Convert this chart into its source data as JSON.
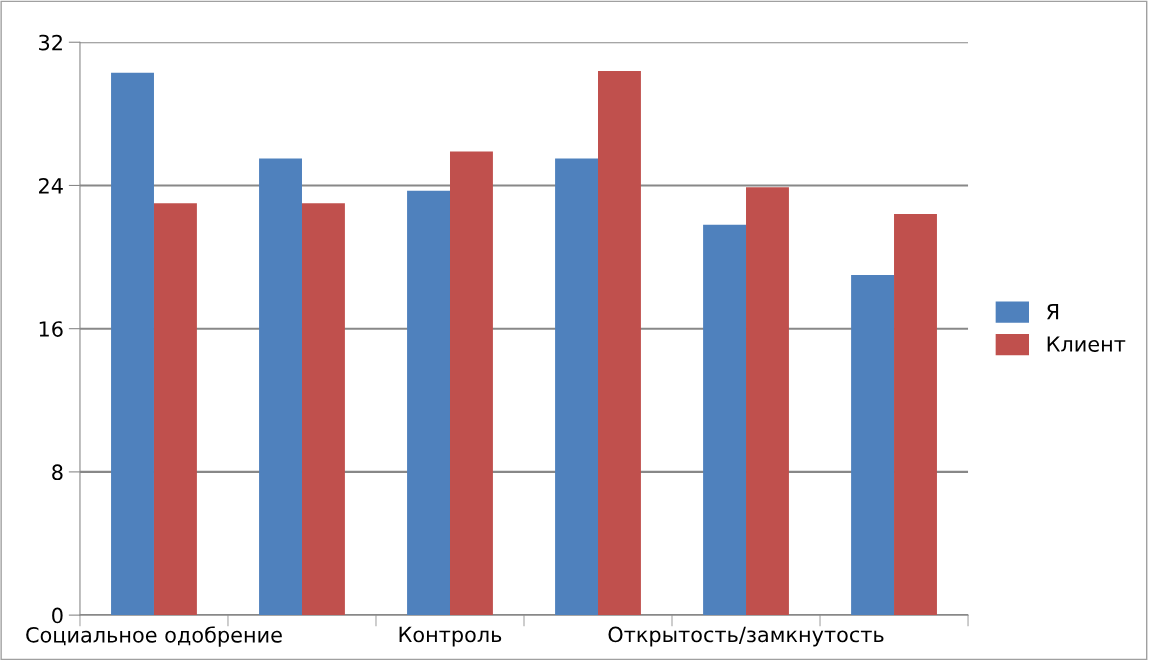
{
  "chart_data": {
    "type": "bar",
    "categories": [
      "Социальное одобрение",
      null,
      "Контроль",
      null,
      "Открытость/замкнутость",
      null
    ],
    "series": [
      {
        "name": "Я",
        "color": "#4f81bd",
        "values": [
          30.3,
          25.5,
          23.7,
          25.5,
          21.8,
          19.0
        ]
      },
      {
        "name": "Клиент",
        "color": "#c0504d",
        "values": [
          23.0,
          23.0,
          25.9,
          30.4,
          23.9,
          22.4
        ]
      }
    ],
    "ylim": [
      0,
      32
    ],
    "yticks": [
      0,
      8,
      16,
      24,
      32
    ],
    "grid": "y",
    "legend": "right"
  }
}
